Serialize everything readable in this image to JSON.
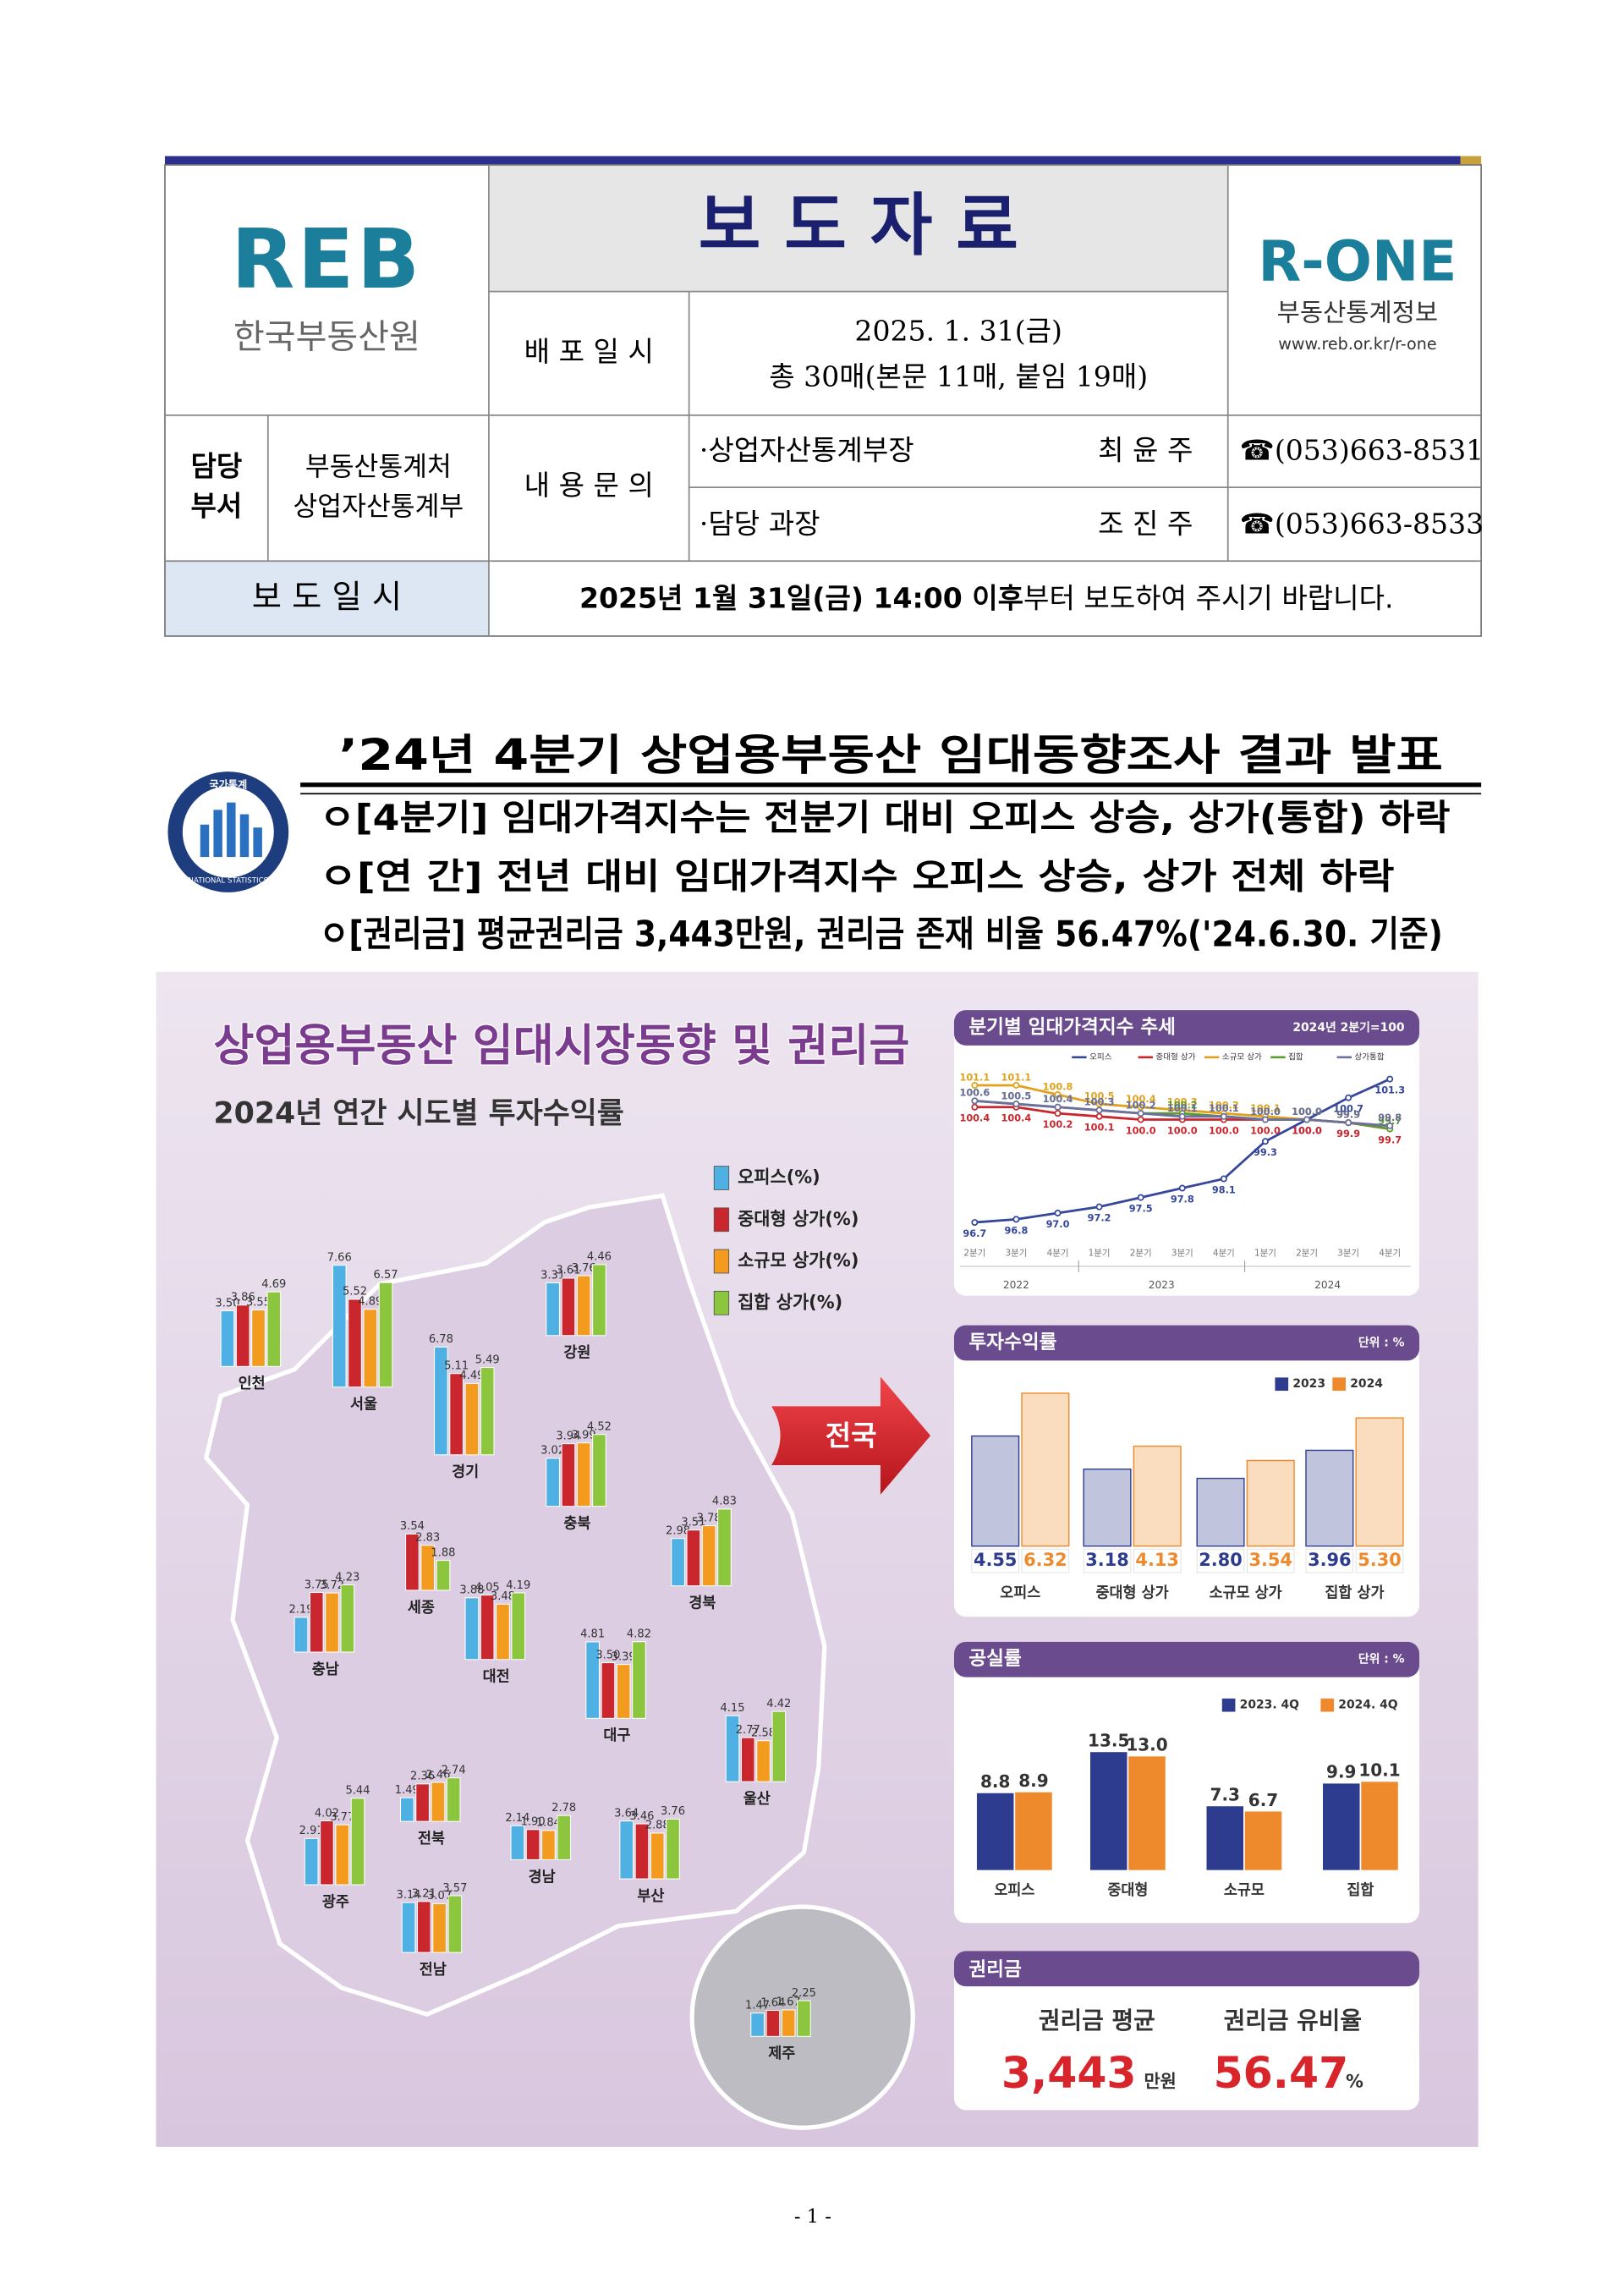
{
  "header": {
    "logo_left": {
      "mark": "REB",
      "name": "한국부동산원"
    },
    "title": "보 도 자 료",
    "release_label": "배 포 일 시",
    "release_date": "2025. 1. 31(금)",
    "pages": "총 30매(본문 11매, 붙임 19매)",
    "logo_right": {
      "mark": "R-ONE",
      "name": "부동산통계정보",
      "url": "www.reb.or.kr/r-one"
    },
    "dept_label": [
      "담당",
      "부서"
    ],
    "dept": [
      "부동산통계처",
      "상업자산통계부"
    ],
    "contact_label": "내 용 문 의",
    "contacts": [
      {
        "role": "·상업자산통계부장",
        "name": "최 윤 주",
        "phone": "☎(053)663-8531"
      },
      {
        "role": "·담당  과장",
        "name": "조 진 주",
        "phone": "☎(053)663-8533"
      }
    ],
    "embargo_label": "보 도 일 시",
    "embargo_bold": "2025년  1월 31일(금) 14:00 이후",
    "embargo_rest": "부터 보도하여 주시기 바랍니다."
  },
  "headline": {
    "title": "’24년 4분기 상업용부동산 임대동향조사 결과 발표",
    "bullets": [
      "ㅇ[4분기] 임대가격지수는 전분기 대비 오피스 상승, 상가(통합) 하락",
      "ㅇ[연  간] 전년 대비 임대가격지수 오피스 상승, 상가 전체 하락",
      "ㅇ[권리금] 평균권리금 3,443만원, 권리금 존재 비율 56.47%('24.6.30. 기준)"
    ],
    "emblem": {
      "top": "국가통계",
      "bottom": "NATIONAL STATISTICS"
    }
  },
  "infographic": {
    "title": "상업용부동산 임대시장동향 및 권리금",
    "subtitle": "2024년 연간 시도별 투자수익률",
    "arrow_label": "전국",
    "key_money": {
      "title": "권리금",
      "avg_label": "권리금 평균",
      "avg_value": "3,443",
      "avg_unit": "만원",
      "ratio_label": "권리금 유비율",
      "ratio_value": "56.47",
      "ratio_unit": "%"
    }
  },
  "chart_data": [
    {
      "type": "bar",
      "categories": [
        "인천",
        "서울",
        "경기",
        "강원",
        "충북",
        "세종",
        "충남",
        "대전",
        "경북",
        "대구",
        "울산",
        "전북",
        "광주",
        "경남",
        "부산",
        "전남",
        "제주"
      ],
      "series": [
        {
          "name": "오피스(%)",
          "color": "#4fb0e3",
          "values": [
            3.5,
            7.66,
            6.78,
            3.31,
            3.02,
            null,
            2.19,
            3.88,
            2.98,
            4.81,
            4.15,
            1.49,
            2.91,
            2.14,
            3.64,
            3.14,
            1.47
          ],
          "value_labels": [
            "3.50",
            "7.66",
            "6.78",
            "3.31",
            "3.02",
            null,
            "2.19",
            "3.88",
            "2.98",
            "4.81",
            "4.15",
            "1.49",
            "2.91",
            "2.14",
            "3.64",
            "3.14",
            "1.47"
          ]
        },
        {
          "name": "중대형 상가(%)",
          "color": "#c9262d",
          "values": [
            3.86,
            5.52,
            5.11,
            3.61,
            3.94,
            3.54,
            3.75,
            4.05,
            3.51,
            3.5,
            2.77,
            2.36,
            4.02,
            1.9,
            3.46,
            3.21,
            1.64
          ],
          "value_labels": [
            "3.86",
            "5.52",
            "5.11",
            "3.61",
            "3.94",
            "3.54",
            "3.75",
            "4.05",
            "3.51",
            "3.50",
            "2.77",
            "2.36",
            "4.02",
            "1.90",
            "3.46",
            "3.21",
            "1.64"
          ]
        },
        {
          "name": "소규모 상가(%)",
          "color": "#f29b1e",
          "values": [
            3.55,
            4.89,
            4.49,
            3.76,
            3.99,
            2.83,
            3.72,
            3.48,
            3.78,
            3.39,
            2.58,
            2.46,
            3.77,
            1.84,
            2.88,
            3.07,
            1.67
          ],
          "value_labels": [
            "3.55",
            "4.89",
            "4.49",
            "3.76",
            "3.99",
            "2.83",
            "3.72",
            "3.48",
            "3.78",
            "3.39",
            "2.58",
            "2.46",
            "3.77",
            "1.84",
            "2.88",
            "3.07",
            "1.67"
          ]
        },
        {
          "name": "집합 상가(%)",
          "color": "#8cc63e",
          "values": [
            4.69,
            6.57,
            5.49,
            4.46,
            4.52,
            1.88,
            4.23,
            4.19,
            4.83,
            4.82,
            4.42,
            2.74,
            5.44,
            2.78,
            3.76,
            3.57,
            2.25
          ],
          "value_labels": [
            "4.69",
            "6.57",
            "5.49",
            "4.46",
            "4.52",
            "1.88",
            "4.23",
            "4.19",
            "4.83",
            "4.82",
            "4.42",
            "2.74",
            "5.44",
            "2.78",
            "3.76",
            "3.57",
            "2.25"
          ]
        }
      ]
    },
    {
      "type": "line",
      "title": "분기별 임대가격지수 추세",
      "subtitle": "2024년 2분기=100",
      "categories": [
        "2분기",
        "3분기",
        "4분기",
        "1분기",
        "2분기",
        "3분기",
        "4분기",
        "1분기",
        "2분기",
        "3분기",
        "4분기"
      ],
      "year_groups": [
        {
          "label": "2022",
          "count": 3
        },
        {
          "label": "2023",
          "count": 4
        },
        {
          "label": "2024",
          "count": 4
        }
      ],
      "ylim": [
        96,
        102
      ],
      "series": [
        {
          "name": "오피스",
          "color": "#34479a",
          "values": [
            96.7,
            96.8,
            97.0,
            97.2,
            97.5,
            97.8,
            98.1,
            99.3,
            100.0,
            100.7,
            101.3
          ],
          "value_labels": [
            "96.7",
            "96.8",
            "97.0",
            "97.2",
            "97.5",
            "97.8",
            "98.1",
            "99.3",
            "100.0",
            "100.7",
            "101.3"
          ]
        },
        {
          "name": "중대형 상가",
          "color": "#c9262d",
          "values": [
            100.4,
            100.4,
            100.2,
            100.1,
            100.0,
            100.0,
            100.0,
            100.0,
            100.0,
            99.9,
            99.7
          ],
          "value_labels": [
            "100.4",
            "100.4",
            "100.2",
            "100.1",
            "100.0",
            "100.0",
            "100.0",
            "100.0",
            "100.0",
            "99.9",
            "99.7"
          ]
        },
        {
          "name": "소규모 상가",
          "color": "#e0a21c",
          "values": [
            101.1,
            101.1,
            100.8,
            100.5,
            100.4,
            100.3,
            100.2,
            100.1,
            100.0,
            99.9,
            99.8
          ],
          "value_labels": [
            "101.1",
            "101.1",
            "100.8",
            "100.5",
            "100.4",
            "100.3",
            "100.2",
            "100.1",
            "100.0",
            "99.9",
            "99.8"
          ]
        },
        {
          "name": "집합",
          "color": "#5c9b2f",
          "values": [
            100.6,
            100.5,
            100.4,
            100.3,
            100.2,
            100.2,
            100.1,
            100.0,
            100.0,
            99.9,
            99.7
          ],
          "value_labels": [
            "100.6",
            "100.5",
            "100.4",
            "100.3",
            "100.2",
            "100.2",
            "100.1",
            "100.0",
            "100.0",
            "99.9",
            "99.7"
          ]
        },
        {
          "name": "상가통합",
          "color": "#6d6f9e",
          "values": [
            100.6,
            100.5,
            100.4,
            100.3,
            100.2,
            100.1,
            100.1,
            100.0,
            100.0,
            99.9,
            99.8
          ],
          "value_labels": [
            "100.6",
            "100.5",
            "100.4",
            "100.3",
            "100.2",
            "100.1",
            "100.1",
            "100.0",
            "100.0",
            "99.9",
            "99.8"
          ]
        }
      ]
    },
    {
      "type": "bar",
      "title": "투자수익률",
      "subtitle": "단위 : %",
      "categories": [
        "오피스",
        "중대형 상가",
        "소규모 상가",
        "집합 상가"
      ],
      "ylim": [
        0,
        7
      ],
      "series": [
        {
          "name": "2023",
          "color": "#2d3c8e",
          "values": [
            4.55,
            3.18,
            2.8,
            3.96
          ],
          "value_labels": [
            "4.55",
            "3.18",
            "2.80",
            "3.96"
          ]
        },
        {
          "name": "2024",
          "color": "#ef8a2c",
          "values": [
            6.32,
            4.13,
            3.54,
            5.3
          ],
          "value_labels": [
            "6.32",
            "4.13",
            "3.54",
            "5.30"
          ]
        }
      ]
    },
    {
      "type": "bar",
      "title": "공실률",
      "subtitle": "단위 : %",
      "categories": [
        "오피스",
        "중대형",
        "소규모",
        "집합"
      ],
      "ylim": [
        0,
        15
      ],
      "series": [
        {
          "name": "2023. 4Q",
          "color": "#2d3c8e",
          "values": [
            8.8,
            13.5,
            7.3,
            9.9
          ]
        },
        {
          "name": "2024. 4Q",
          "color": "#ef8a2c",
          "values": [
            8.9,
            13.0,
            6.7,
            10.1
          ],
          "value_labels": [
            "8.9",
            "13.0",
            "6.7",
            "10.1"
          ]
        }
      ]
    }
  ],
  "footer": {
    "page": "- 1 -"
  }
}
